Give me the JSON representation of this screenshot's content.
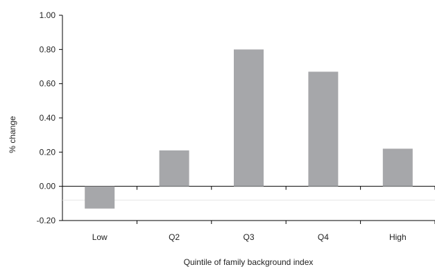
{
  "chart_data": {
    "type": "bar",
    "categories": [
      "Low",
      "Q2",
      "Q3",
      "Q4",
      "High"
    ],
    "values": [
      -0.13,
      0.21,
      0.8,
      0.67,
      0.22
    ],
    "ylabel": "% change",
    "xlabel": "Quintile of family background index",
    "ylim": [
      -0.2,
      1.0
    ],
    "yticks": [
      "1.00",
      "0.80",
      "0.60",
      "0.40",
      "0.20",
      "0.00",
      "-0.20"
    ],
    "bar_color": "#a6a7aa",
    "grid": false
  }
}
